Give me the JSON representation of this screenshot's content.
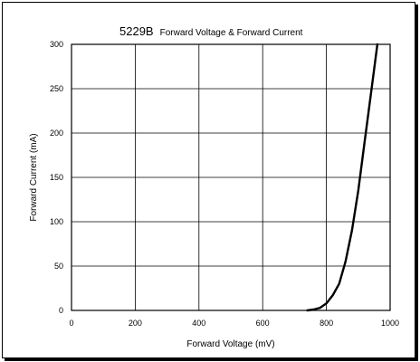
{
  "chart_data": {
    "type": "line",
    "title_part": "5229B",
    "title_suffix": "Forward Voltage & Forward Current",
    "xlabel": "Forward Voltage (mV)",
    "ylabel": "Forward Current (mA)",
    "xlim": [
      0,
      1000
    ],
    "ylim": [
      0,
      300
    ],
    "x_ticks": [
      0,
      200,
      400,
      600,
      800,
      1000
    ],
    "y_ticks": [
      0,
      50,
      100,
      150,
      200,
      250,
      300
    ],
    "grid": true,
    "series": [
      {
        "color": "#000000",
        "x": [
          740,
          760,
          780,
          800,
          820,
          840,
          860,
          880,
          900,
          920,
          940,
          960
        ],
        "y": [
          0,
          1,
          3,
          8,
          17,
          30,
          55,
          90,
          135,
          190,
          245,
          300
        ]
      }
    ]
  }
}
